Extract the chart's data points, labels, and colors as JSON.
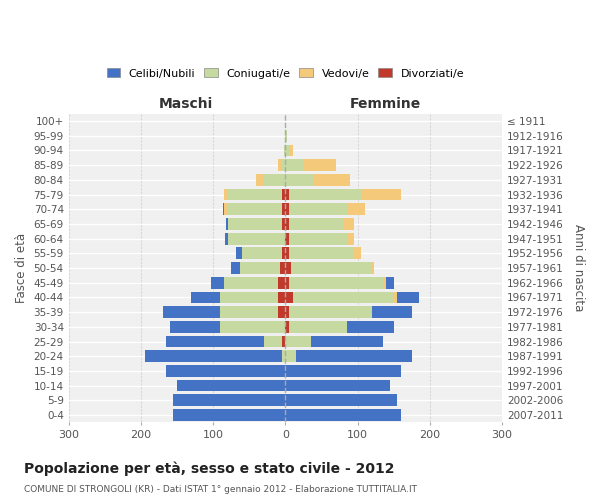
{
  "age_groups": [
    "0-4",
    "5-9",
    "10-14",
    "15-19",
    "20-24",
    "25-29",
    "30-34",
    "35-39",
    "40-44",
    "45-49",
    "50-54",
    "55-59",
    "60-64",
    "65-69",
    "70-74",
    "75-79",
    "80-84",
    "85-89",
    "90-94",
    "95-99",
    "100+"
  ],
  "birth_years": [
    "2007-2011",
    "2002-2006",
    "1997-2001",
    "1992-1996",
    "1987-1991",
    "1982-1986",
    "1977-1981",
    "1972-1976",
    "1967-1971",
    "1962-1966",
    "1957-1961",
    "1952-1956",
    "1947-1951",
    "1942-1946",
    "1937-1941",
    "1932-1936",
    "1927-1931",
    "1922-1926",
    "1917-1921",
    "1912-1916",
    "≤ 1911"
  ],
  "maschi": {
    "celibi": [
      155,
      155,
      150,
      165,
      190,
      135,
      70,
      80,
      40,
      18,
      12,
      8,
      4,
      2,
      1,
      0,
      0,
      0,
      0,
      0,
      0
    ],
    "coniugati": [
      0,
      0,
      0,
      0,
      5,
      25,
      90,
      80,
      80,
      75,
      55,
      55,
      80,
      75,
      75,
      75,
      30,
      5,
      2,
      0,
      0
    ],
    "vedovi": [
      0,
      0,
      0,
      0,
      0,
      0,
      0,
      0,
      0,
      0,
      0,
      0,
      0,
      0,
      5,
      5,
      10,
      5,
      0,
      0,
      0
    ],
    "divorziati": [
      0,
      0,
      0,
      0,
      0,
      5,
      0,
      10,
      10,
      10,
      8,
      5,
      0,
      5,
      5,
      5,
      0,
      0,
      0,
      0,
      0
    ]
  },
  "femmine": {
    "nubili": [
      160,
      155,
      145,
      160,
      160,
      100,
      65,
      55,
      30,
      10,
      0,
      0,
      0,
      0,
      0,
      0,
      0,
      0,
      0,
      0,
      0
    ],
    "coniugate": [
      0,
      0,
      0,
      0,
      15,
      35,
      80,
      115,
      140,
      130,
      110,
      90,
      80,
      75,
      80,
      100,
      40,
      25,
      5,
      2,
      0
    ],
    "vedove": [
      0,
      0,
      0,
      0,
      0,
      0,
      0,
      0,
      5,
      5,
      5,
      10,
      10,
      15,
      25,
      55,
      50,
      45,
      5,
      0,
      0
    ],
    "divorziate": [
      0,
      0,
      0,
      0,
      0,
      0,
      5,
      5,
      10,
      5,
      8,
      5,
      5,
      5,
      5,
      5,
      0,
      0,
      0,
      0,
      0
    ]
  },
  "colors": {
    "celibi_nubili": "#4472C4",
    "coniugati_e": "#C5D9A0",
    "vedovi_e": "#F5C97A",
    "divorziati_e": "#C0392B"
  },
  "title": "Popolazione per età, sesso e stato civile - 2012",
  "subtitle": "COMUNE DI STRONGOLI (KR) - Dati ISTAT 1° gennaio 2012 - Elaborazione TUTTITALIA.IT",
  "xlabel_left": "Maschi",
  "xlabel_right": "Femmine",
  "ylabel_left": "Fasce di età",
  "ylabel_right": "Anni di nascita",
  "xlim": 300,
  "background_color": "#ffffff",
  "legend_labels": [
    "Celibi/Nubili",
    "Coniugati/e",
    "Vedovi/e",
    "Divorziati/e"
  ]
}
